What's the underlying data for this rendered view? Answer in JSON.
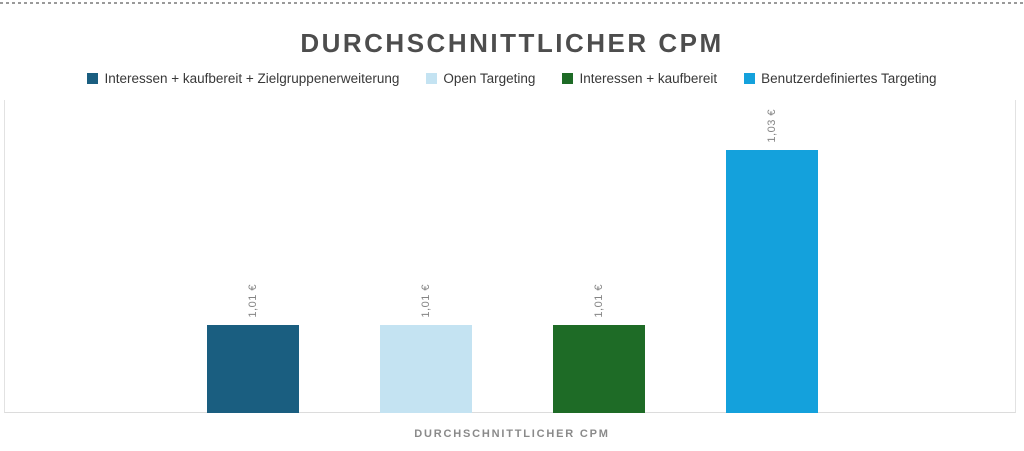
{
  "chart": {
    "title": "DURCHSCHNITTLICHER CPM",
    "axis_label": "DURCHSCHNITTLICHER CPM"
  },
  "chart_data": {
    "type": "bar",
    "title": "DURCHSCHNITTLICHER CPM",
    "xlabel": "DURCHSCHNITTLICHER CPM",
    "ylabel": "",
    "ylim": [
      1.0,
      1.0357
    ],
    "grid": false,
    "legend_position": "top",
    "series": [
      {
        "name": "Interessen + kaufbereit + Zielgruppenerweiterung",
        "value": 1.01,
        "label": "1,01 €",
        "color": "#1a5e80"
      },
      {
        "name": "Open Targeting",
        "value": 1.01,
        "label": "1,01 €",
        "color": "#c4e3f2"
      },
      {
        "name": "Interessen + kaufbereit",
        "value": 1.01,
        "label": "1,01 €",
        "color": "#1e6b26"
      },
      {
        "name": "Benutzerdefiniertes Targeting",
        "value": 1.03,
        "label": "1,03 €",
        "color": "#14a1dc"
      }
    ]
  }
}
